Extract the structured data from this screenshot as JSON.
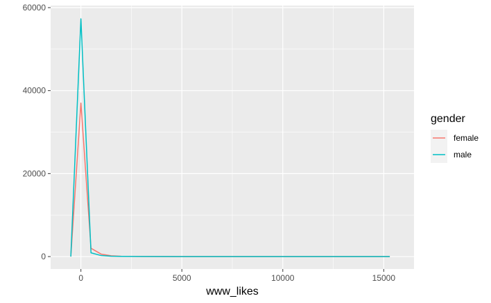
{
  "chart_data": {
    "type": "line",
    "xlabel": "www_likes",
    "ylabel": "",
    "xlim": [
      -1500,
      16500
    ],
    "ylim": [
      -3000,
      60500
    ],
    "x_ticks": [
      0,
      5000,
      10000,
      15000
    ],
    "x_tick_labels": [
      "0",
      "5000",
      "10000",
      "15000"
    ],
    "y_ticks": [
      0,
      20000,
      40000,
      60000
    ],
    "y_tick_labels": [
      "0",
      "20000",
      "40000",
      "60000"
    ],
    "grid": true,
    "legend": {
      "title": "gender",
      "placement": "right"
    },
    "series": [
      {
        "name": "female",
        "color": "#F8766D",
        "x": [
          -500,
          0,
          500,
          1000,
          1500,
          2000,
          3000,
          5000,
          8000,
          11000,
          15300
        ],
        "y": [
          0,
          37000,
          2000,
          600,
          200,
          80,
          30,
          10,
          5,
          2,
          0
        ]
      },
      {
        "name": "male",
        "color": "#00BFC4",
        "x": [
          -500,
          0,
          500,
          1000,
          1500,
          2000,
          3000,
          5000,
          8000,
          11000,
          15300
        ],
        "y": [
          0,
          57300,
          900,
          250,
          100,
          50,
          20,
          8,
          4,
          2,
          0
        ]
      }
    ]
  }
}
